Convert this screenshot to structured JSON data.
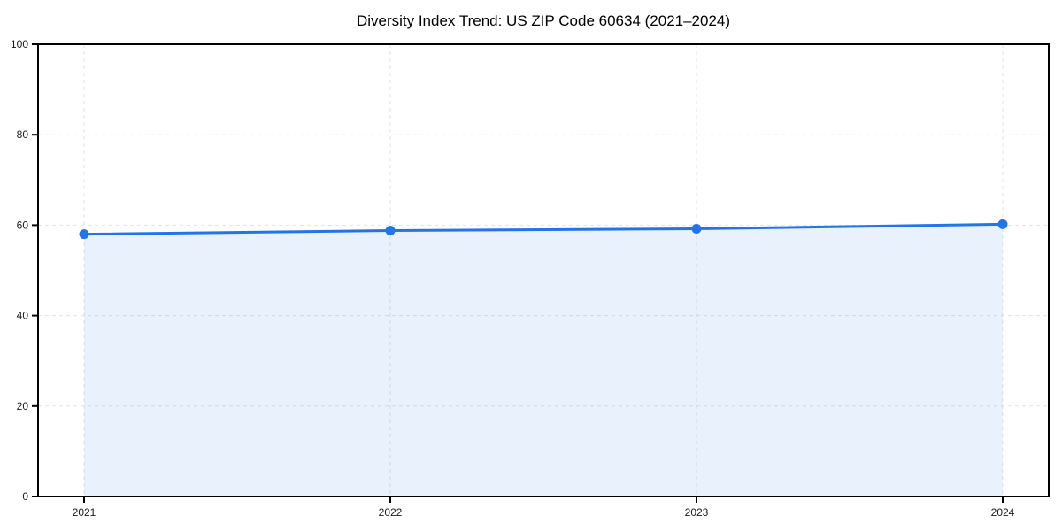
{
  "figure": {
    "title": "Diversity Index Trend: US ZIP Code 60634 (2021–2024)"
  },
  "chart_data": {
    "type": "area",
    "title": "Diversity Index Trend: US ZIP Code 60634 (2021–2024)",
    "series_name": "Diversity Index",
    "categories": [
      "2021",
      "2022",
      "2023",
      "2024"
    ],
    "values": [
      58.0,
      58.8,
      59.2,
      60.2
    ],
    "xlabel": "",
    "ylabel": "",
    "ylim": [
      0,
      100
    ],
    "yticks": [
      0,
      20,
      40,
      60,
      80,
      100
    ],
    "grid": true,
    "grid_style": "dashed",
    "legend": false,
    "marker": "circle",
    "colors": {
      "line": "#2374e8",
      "marker": "#2374e8",
      "fill": "rgba(35,116,232,0.10)",
      "grid": "#e3e3e3",
      "axis": "#000000",
      "tick_label": "#1a1a1a",
      "background": "#ffffff"
    }
  }
}
